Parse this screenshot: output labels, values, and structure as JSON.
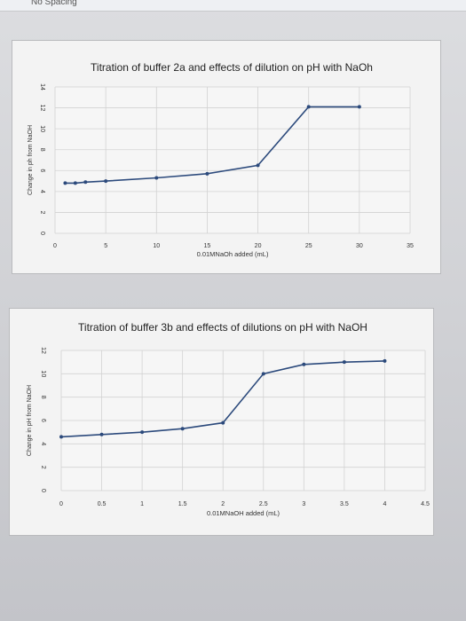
{
  "page": {
    "header_fragment": "No Spacing"
  },
  "chart_data": [
    {
      "type": "line",
      "title": "Titration of buffer 2a and effects of dilution on pH with NaOh",
      "xlabel": "0.01MNaOh added (mL)",
      "ylabel": "Change in ph from NaOH",
      "xlim": [
        0,
        35
      ],
      "ylim": [
        0,
        14
      ],
      "xticks": [
        "0",
        "5",
        "10",
        "15",
        "20",
        "25",
        "30",
        "35"
      ],
      "yticks": [
        "0",
        "2",
        "4",
        "6",
        "8",
        "10",
        "12",
        "14"
      ],
      "grid": true,
      "legend": "none",
      "line_color": "#2c4a7c",
      "series": [
        {
          "x": [
            1,
            2,
            3,
            5,
            10,
            15,
            20,
            25,
            30
          ],
          "y": [
            4.8,
            4.8,
            4.9,
            5.0,
            5.3,
            5.7,
            6.5,
            12.1,
            12.1
          ]
        }
      ]
    },
    {
      "type": "line",
      "title": "Titration of buffer 3b and effects of dilutions on pH with NaOH",
      "xlabel": "0.01MNaOH added (mL)",
      "ylabel": "Change in pH from NaOH",
      "xlim": [
        0,
        4.5
      ],
      "ylim": [
        0,
        12
      ],
      "xticks": [
        "0",
        "0.5",
        "1",
        "1.5",
        "2",
        "2.5",
        "3",
        "3.5",
        "4",
        "4.5"
      ],
      "yticks": [
        "0",
        "2",
        "4",
        "6",
        "8",
        "10",
        "12"
      ],
      "grid": true,
      "legend": "none",
      "line_color": "#2c4a7c",
      "series": [
        {
          "x": [
            0,
            0.5,
            1,
            1.5,
            2,
            2.5,
            3,
            3.5,
            4
          ],
          "y": [
            4.6,
            4.8,
            5.0,
            5.3,
            5.8,
            10.0,
            10.8,
            11.0,
            11.1
          ]
        }
      ]
    }
  ]
}
